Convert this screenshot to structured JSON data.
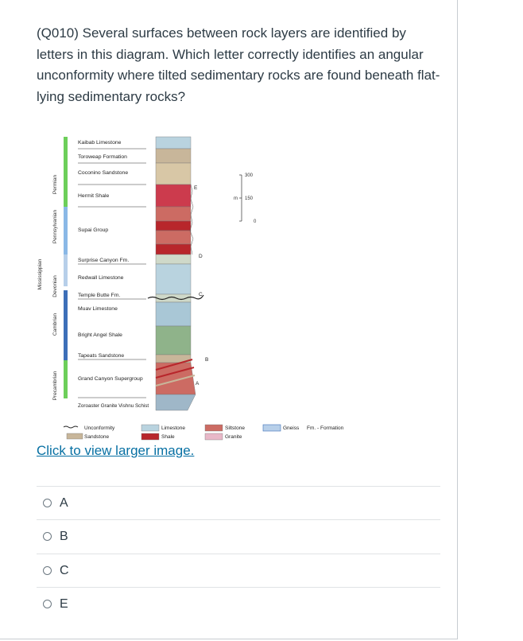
{
  "question": {
    "text": "(Q010) Several surfaces between rock layers are identified by letters in this diagram. Which letter correctly identifies an angular unconformity where tilted sedimentary rocks are found beneath flat-lying sedimentary rocks?"
  },
  "diagram": {
    "periods": [
      "Permian",
      "Pennsylvanian",
      "Mississippian",
      "Devonian",
      "Cambrian",
      "Precambrian"
    ],
    "layers": [
      "Kaibab Limestone",
      "Toroweap Formation",
      "Coconino Sandstone",
      "Hermit Shale",
      "Supai Group",
      "Surprise Canyon Fm.",
      "Redwall Limestone",
      "Temple Butte Fm.",
      "Muav Limestone",
      "Bright Angel Shale",
      "Tapeats Sandstone",
      "Grand Canyon Supergroup",
      "Zoroaster Granite Vishnu Schist"
    ],
    "surface_letters": [
      "E",
      "D",
      "C",
      "B",
      "A"
    ],
    "scale": {
      "unit": "m",
      "ticks": [
        "300",
        "150",
        "0"
      ]
    },
    "legend": {
      "unconformity": "Unconformity",
      "sandstone": "Sandstone",
      "limestone": "Limestone",
      "shale": "Shale",
      "siltstone": "Siltstone",
      "granite": "Granite",
      "gneiss": "Gneiss",
      "formation": "Fm. - Formation"
    },
    "colors": {
      "sandstone": "#c8b69a",
      "limestone": "#b9d3df",
      "shale": "#b8262b",
      "siltstone": "#cc6b63",
      "granite": "#e8b8c8",
      "gneiss": "#b7cfe9",
      "green_bar": "#6dcf5a",
      "blue_bar": "#8ab8e6",
      "dark_blue_bar": "#3d6fb8"
    }
  },
  "link": {
    "text": "Click to view larger image."
  },
  "answers": [
    {
      "letter": "A"
    },
    {
      "letter": "B"
    },
    {
      "letter": "C"
    },
    {
      "letter": "E"
    }
  ]
}
